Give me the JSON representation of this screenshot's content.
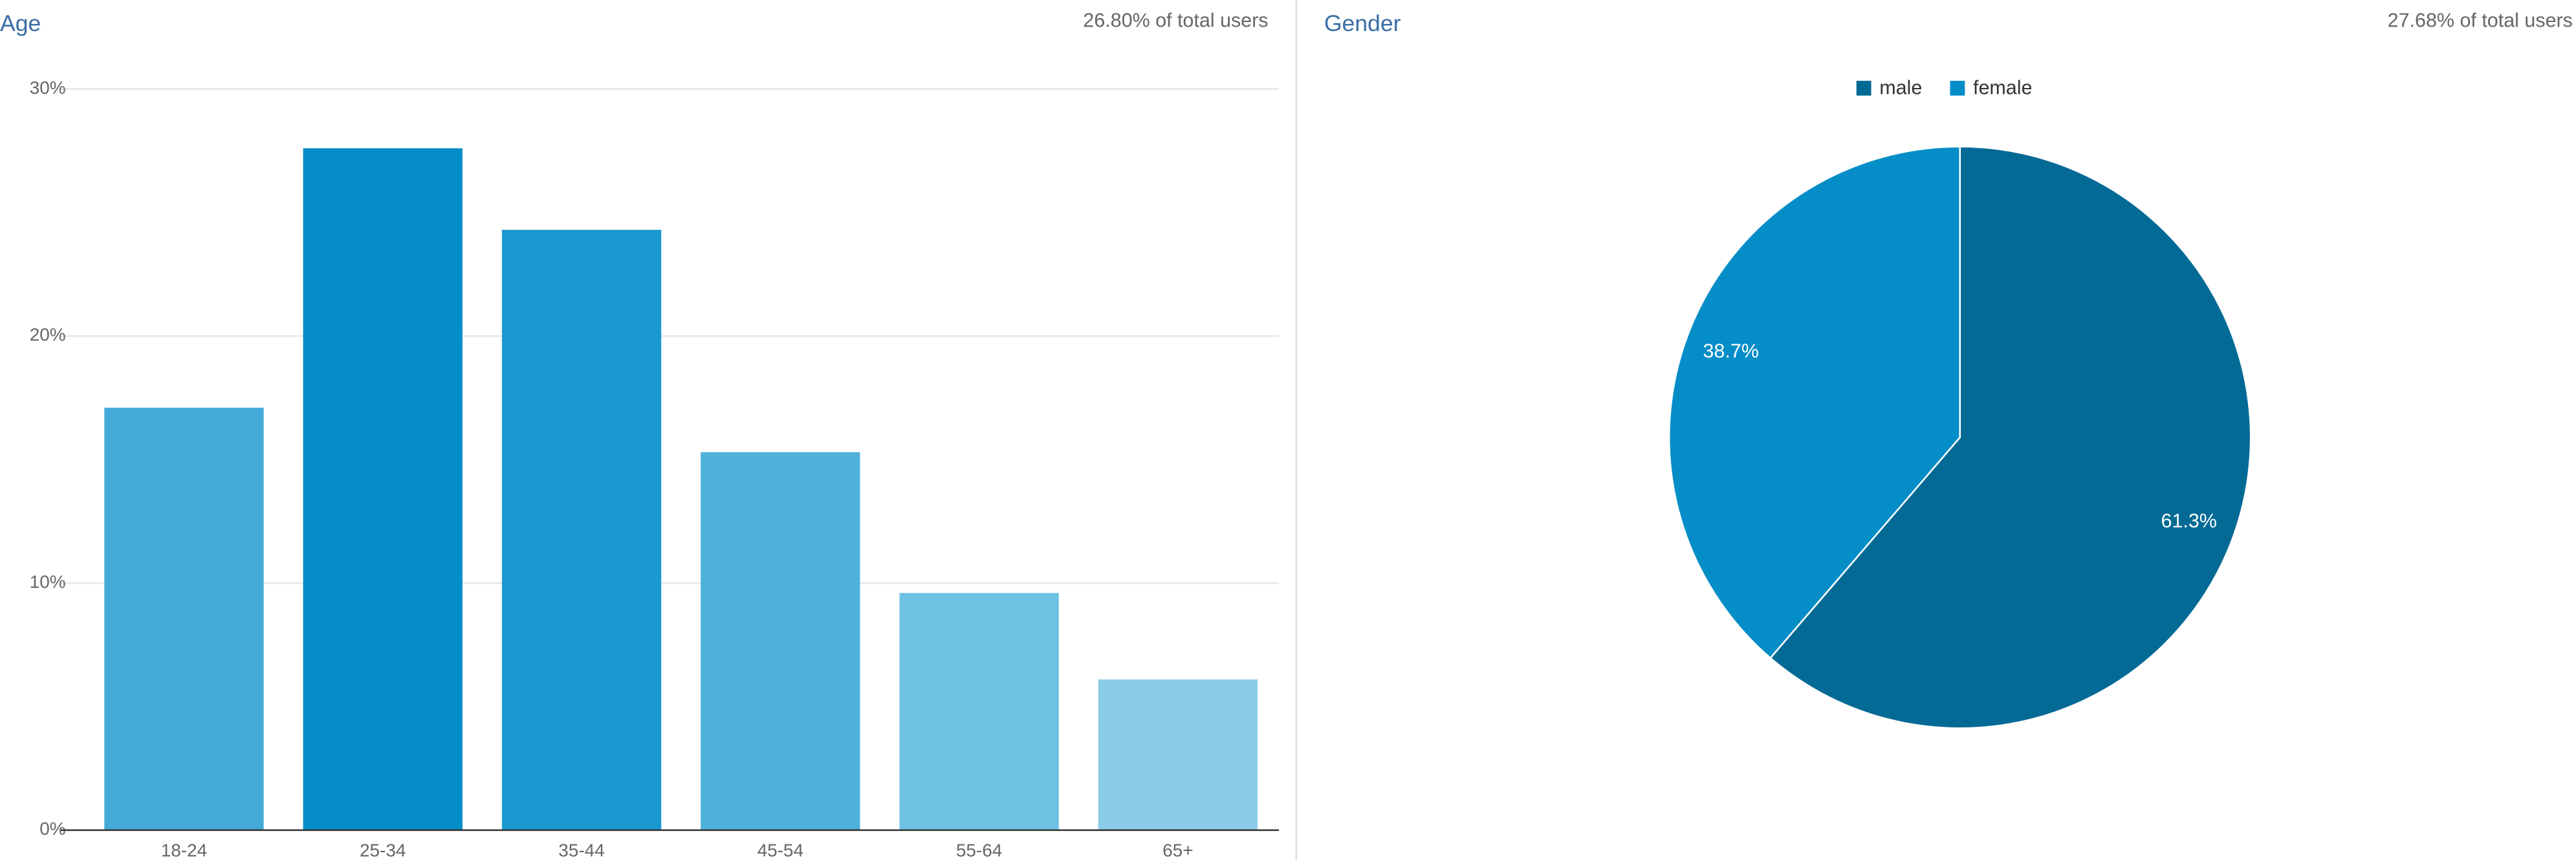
{
  "chart_data": [
    {
      "type": "bar",
      "title": "Age",
      "subtitle": "26.80% of total users",
      "categories": [
        "18-24",
        "25-34",
        "35-44",
        "45-54",
        "55-64",
        "65+"
      ],
      "values": [
        17.1,
        27.6,
        24.3,
        15.3,
        9.6,
        6.1
      ],
      "colors": [
        "#46aad9",
        "#058dc7",
        "#1b98d0",
        "#50b0dc",
        "#6ec1e3",
        "#8bcde8"
      ],
      "ylim": [
        0,
        30
      ],
      "yticks": [
        {
          "value": 0,
          "label": "0%"
        },
        {
          "value": 10,
          "label": "10%"
        },
        {
          "value": 20,
          "label": "20%"
        },
        {
          "value": 30,
          "label": "30%"
        }
      ],
      "grid": true
    },
    {
      "type": "pie",
      "title": "Gender",
      "subtitle": "27.68% of total users",
      "categories": [
        "male",
        "female"
      ],
      "values": [
        61.3,
        38.7
      ],
      "value_labels": [
        "61.3%",
        "38.7%"
      ],
      "colors": [
        "#036a96",
        "#058dc7"
      ],
      "legend": "top"
    }
  ]
}
